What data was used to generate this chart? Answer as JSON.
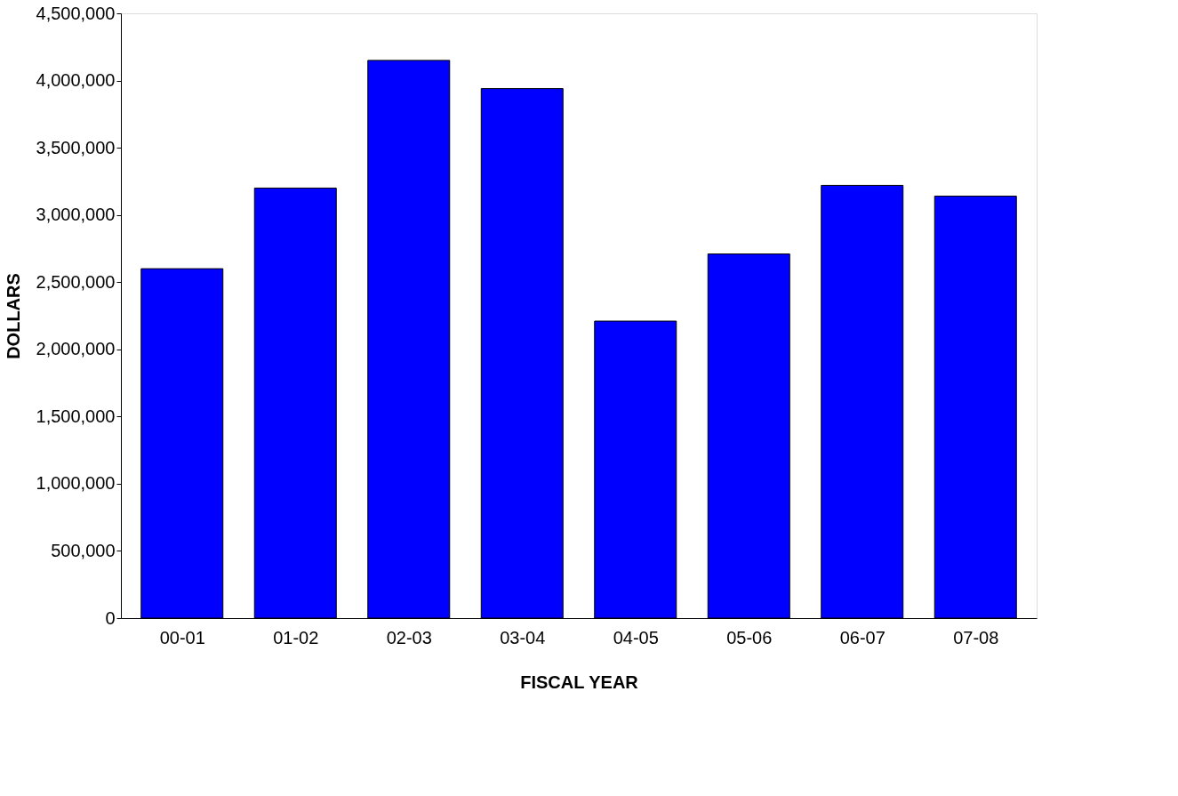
{
  "chart_data": {
    "type": "bar",
    "xlabel": "FISCAL YEAR",
    "ylabel": "DOLLARS",
    "categories": [
      "00-01",
      "01-02",
      "02-03",
      "03-04",
      "04-05",
      "05-06",
      "06-07",
      "07-08"
    ],
    "values": [
      2600000,
      3200000,
      4150000,
      3940000,
      2210000,
      2710000,
      3220000,
      3140000
    ],
    "color": "#0000ff",
    "ylim": [
      0,
      4500000
    ],
    "yticks": [
      0,
      {
        "value": 500000,
        "label": "500,000"
      },
      {
        "value": 1000000,
        "label": "1,000,000"
      },
      {
        "value": 1500000,
        "label": "1,500,000"
      },
      {
        "value": 2000000,
        "label": "2,000,000"
      },
      {
        "value": 2500000,
        "label": "2,500,000"
      },
      {
        "value": 3000000,
        "label": "3,000,000"
      },
      {
        "value": 3500000,
        "label": "3,500,000"
      },
      {
        "value": 4000000,
        "label": "4,000,000"
      },
      {
        "value": 4500000,
        "label": "4,500,000"
      }
    ],
    "grid": false,
    "legend": false
  }
}
